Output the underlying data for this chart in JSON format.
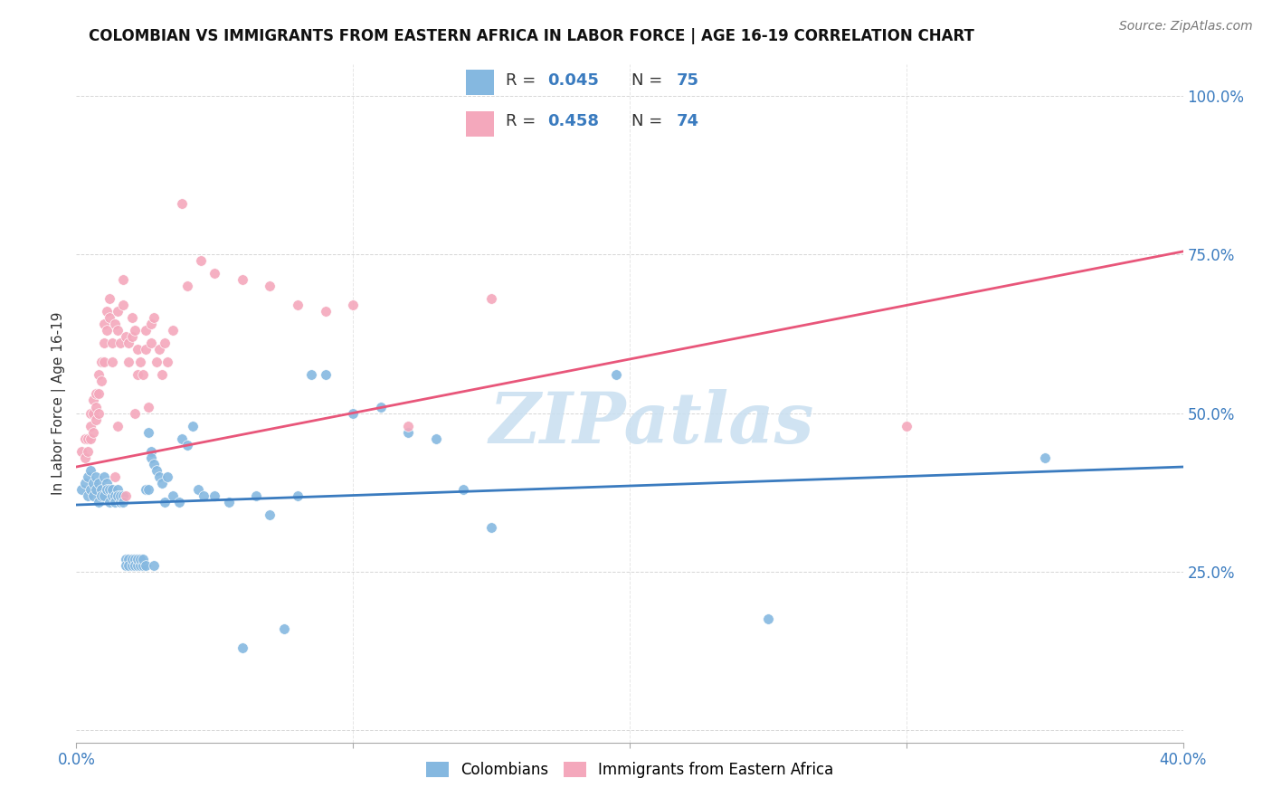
{
  "title": "COLOMBIAN VS IMMIGRANTS FROM EASTERN AFRICA IN LABOR FORCE | AGE 16-19 CORRELATION CHART",
  "source": "Source: ZipAtlas.com",
  "ylabel": "In Labor Force | Age 16-19",
  "xlim": [
    0.0,
    0.4
  ],
  "ylim": [
    -0.02,
    1.05
  ],
  "xtick_positions": [
    0.0,
    0.1,
    0.2,
    0.3,
    0.4
  ],
  "xticklabels": [
    "0.0%",
    "",
    "",
    "",
    "40.0%"
  ],
  "ytick_positions": [
    0.0,
    0.25,
    0.5,
    0.75,
    1.0
  ],
  "yticklabels": [
    "",
    "25.0%",
    "50.0%",
    "75.0%",
    "100.0%"
  ],
  "blue_color": "#85b8e0",
  "pink_color": "#f4a8bc",
  "blue_line_color": "#3a7bbf",
  "pink_line_color": "#e8567a",
  "watermark": "ZIPatlas",
  "watermark_color": "#c8dff0",
  "blue_scatter": [
    [
      0.002,
      0.38
    ],
    [
      0.003,
      0.39
    ],
    [
      0.004,
      0.4
    ],
    [
      0.004,
      0.37
    ],
    [
      0.005,
      0.41
    ],
    [
      0.005,
      0.38
    ],
    [
      0.006,
      0.39
    ],
    [
      0.006,
      0.37
    ],
    [
      0.007,
      0.4
    ],
    [
      0.007,
      0.38
    ],
    [
      0.008,
      0.39
    ],
    [
      0.008,
      0.36
    ],
    [
      0.009,
      0.38
    ],
    [
      0.009,
      0.37
    ],
    [
      0.01,
      0.4
    ],
    [
      0.01,
      0.37
    ],
    [
      0.011,
      0.39
    ],
    [
      0.011,
      0.38
    ],
    [
      0.012,
      0.38
    ],
    [
      0.012,
      0.36
    ],
    [
      0.013,
      0.37
    ],
    [
      0.013,
      0.38
    ],
    [
      0.014,
      0.37
    ],
    [
      0.014,
      0.36
    ],
    [
      0.015,
      0.38
    ],
    [
      0.015,
      0.37
    ],
    [
      0.016,
      0.36
    ],
    [
      0.016,
      0.37
    ],
    [
      0.017,
      0.37
    ],
    [
      0.017,
      0.36
    ],
    [
      0.018,
      0.27
    ],
    [
      0.018,
      0.26
    ],
    [
      0.019,
      0.27
    ],
    [
      0.019,
      0.26
    ],
    [
      0.02,
      0.26
    ],
    [
      0.02,
      0.27
    ],
    [
      0.021,
      0.27
    ],
    [
      0.021,
      0.26
    ],
    [
      0.022,
      0.26
    ],
    [
      0.022,
      0.27
    ],
    [
      0.023,
      0.26
    ],
    [
      0.023,
      0.27
    ],
    [
      0.024,
      0.26
    ],
    [
      0.024,
      0.27
    ],
    [
      0.025,
      0.38
    ],
    [
      0.025,
      0.26
    ],
    [
      0.026,
      0.47
    ],
    [
      0.026,
      0.38
    ],
    [
      0.027,
      0.44
    ],
    [
      0.027,
      0.43
    ],
    [
      0.028,
      0.42
    ],
    [
      0.028,
      0.26
    ],
    [
      0.029,
      0.41
    ],
    [
      0.03,
      0.4
    ],
    [
      0.031,
      0.39
    ],
    [
      0.032,
      0.36
    ],
    [
      0.033,
      0.4
    ],
    [
      0.035,
      0.37
    ],
    [
      0.037,
      0.36
    ],
    [
      0.038,
      0.46
    ],
    [
      0.04,
      0.45
    ],
    [
      0.042,
      0.48
    ],
    [
      0.044,
      0.38
    ],
    [
      0.046,
      0.37
    ],
    [
      0.05,
      0.37
    ],
    [
      0.055,
      0.36
    ],
    [
      0.06,
      0.13
    ],
    [
      0.065,
      0.37
    ],
    [
      0.07,
      0.34
    ],
    [
      0.075,
      0.16
    ],
    [
      0.08,
      0.37
    ],
    [
      0.085,
      0.56
    ],
    [
      0.09,
      0.56
    ],
    [
      0.1,
      0.5
    ],
    [
      0.11,
      0.51
    ],
    [
      0.12,
      0.47
    ],
    [
      0.13,
      0.46
    ],
    [
      0.14,
      0.38
    ],
    [
      0.15,
      0.32
    ],
    [
      0.195,
      0.56
    ],
    [
      0.25,
      0.175
    ],
    [
      0.35,
      0.43
    ]
  ],
  "pink_scatter": [
    [
      0.002,
      0.44
    ],
    [
      0.003,
      0.46
    ],
    [
      0.003,
      0.43
    ],
    [
      0.004,
      0.46
    ],
    [
      0.004,
      0.44
    ],
    [
      0.005,
      0.5
    ],
    [
      0.005,
      0.48
    ],
    [
      0.005,
      0.46
    ],
    [
      0.006,
      0.52
    ],
    [
      0.006,
      0.5
    ],
    [
      0.006,
      0.47
    ],
    [
      0.007,
      0.53
    ],
    [
      0.007,
      0.51
    ],
    [
      0.007,
      0.49
    ],
    [
      0.008,
      0.56
    ],
    [
      0.008,
      0.53
    ],
    [
      0.008,
      0.5
    ],
    [
      0.009,
      0.58
    ],
    [
      0.009,
      0.55
    ],
    [
      0.01,
      0.64
    ],
    [
      0.01,
      0.61
    ],
    [
      0.01,
      0.58
    ],
    [
      0.011,
      0.66
    ],
    [
      0.011,
      0.63
    ],
    [
      0.012,
      0.68
    ],
    [
      0.012,
      0.65
    ],
    [
      0.013,
      0.61
    ],
    [
      0.013,
      0.58
    ],
    [
      0.014,
      0.64
    ],
    [
      0.014,
      0.4
    ],
    [
      0.015,
      0.66
    ],
    [
      0.015,
      0.63
    ],
    [
      0.015,
      0.48
    ],
    [
      0.016,
      0.61
    ],
    [
      0.017,
      0.71
    ],
    [
      0.017,
      0.67
    ],
    [
      0.018,
      0.62
    ],
    [
      0.018,
      0.37
    ],
    [
      0.019,
      0.61
    ],
    [
      0.019,
      0.58
    ],
    [
      0.02,
      0.65
    ],
    [
      0.02,
      0.62
    ],
    [
      0.021,
      0.63
    ],
    [
      0.021,
      0.5
    ],
    [
      0.022,
      0.6
    ],
    [
      0.022,
      0.56
    ],
    [
      0.023,
      0.58
    ],
    [
      0.024,
      0.56
    ],
    [
      0.025,
      0.63
    ],
    [
      0.025,
      0.6
    ],
    [
      0.026,
      0.51
    ],
    [
      0.027,
      0.64
    ],
    [
      0.027,
      0.61
    ],
    [
      0.028,
      0.65
    ],
    [
      0.029,
      0.58
    ],
    [
      0.03,
      0.6
    ],
    [
      0.031,
      0.56
    ],
    [
      0.032,
      0.61
    ],
    [
      0.033,
      0.58
    ],
    [
      0.035,
      0.63
    ],
    [
      0.038,
      0.83
    ],
    [
      0.04,
      0.7
    ],
    [
      0.045,
      0.74
    ],
    [
      0.05,
      0.72
    ],
    [
      0.06,
      0.71
    ],
    [
      0.07,
      0.7
    ],
    [
      0.08,
      0.67
    ],
    [
      0.09,
      0.66
    ],
    [
      0.1,
      0.67
    ],
    [
      0.12,
      0.48
    ],
    [
      0.15,
      0.68
    ],
    [
      0.3,
      0.48
    ]
  ],
  "blue_line_x": [
    0.0,
    0.4
  ],
  "blue_line_y": [
    0.355,
    0.415
  ],
  "pink_line_x": [
    0.0,
    0.4
  ],
  "pink_line_y": [
    0.415,
    0.755
  ]
}
